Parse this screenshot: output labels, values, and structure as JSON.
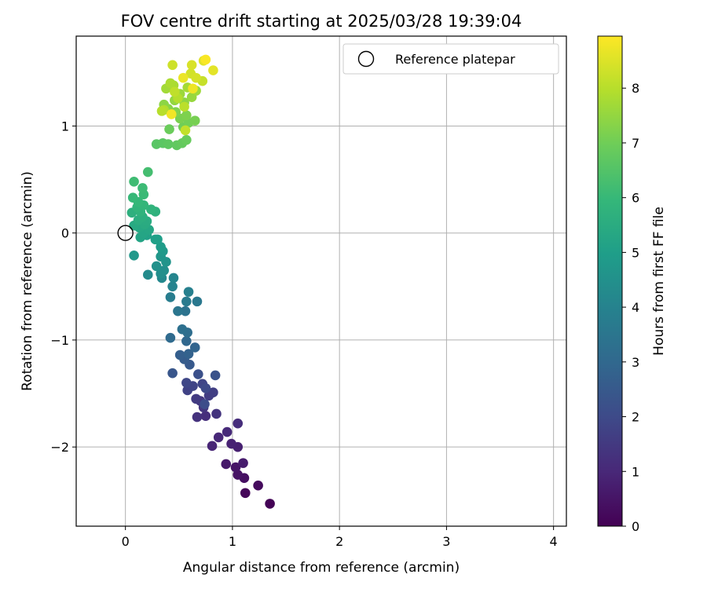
{
  "chart_data": {
    "type": "scatter",
    "title": "FOV centre drift starting at 2025/03/28 19:39:04",
    "xlabel": "Angular distance from reference (arcmin)",
    "ylabel": "Rotation from reference (arcmin)",
    "xlim": [
      -0.46,
      4.12
    ],
    "ylim": [
      -2.74,
      1.84
    ],
    "xticks": [
      0,
      1,
      2,
      3,
      4
    ],
    "xtick_labels": [
      "0",
      "1",
      "2",
      "3",
      "4"
    ],
    "yticks": [
      -2,
      -1,
      0,
      1
    ],
    "ytick_labels": [
      "−2",
      "−1",
      "0",
      "1"
    ],
    "grid": true,
    "legend": {
      "position": "top-right",
      "entries": [
        {
          "label": "Reference platepar",
          "marker": "open-circle"
        }
      ]
    },
    "reference_point": {
      "x": 0,
      "y": 0
    },
    "colorbar": {
      "label": "Hours from first FF file",
      "colormap": "viridis",
      "range": [
        0,
        8.95
      ],
      "ticks": [
        0,
        1,
        2,
        3,
        4,
        5,
        6,
        7,
        8
      ],
      "tick_labels": [
        "0",
        "1",
        "2",
        "3",
        "4",
        "5",
        "6",
        "7",
        "8"
      ]
    },
    "points": [
      {
        "x": 1.35,
        "y": -2.53,
        "t": 0.05
      },
      {
        "x": 1.12,
        "y": -2.43,
        "t": 0.15
      },
      {
        "x": 1.24,
        "y": -2.36,
        "t": 0.25
      },
      {
        "x": 1.11,
        "y": -2.29,
        "t": 0.35
      },
      {
        "x": 1.05,
        "y": -2.26,
        "t": 0.45
      },
      {
        "x": 1.03,
        "y": -2.19,
        "t": 0.5
      },
      {
        "x": 0.94,
        "y": -2.16,
        "t": 0.6
      },
      {
        "x": 1.1,
        "y": -2.15,
        "t": 0.7
      },
      {
        "x": 1.05,
        "y": -2.0,
        "t": 0.8
      },
      {
        "x": 0.99,
        "y": -1.97,
        "t": 0.85
      },
      {
        "x": 0.81,
        "y": -1.99,
        "t": 0.95
      },
      {
        "x": 0.87,
        "y": -1.91,
        "t": 1.0
      },
      {
        "x": 0.95,
        "y": -1.86,
        "t": 1.05
      },
      {
        "x": 1.05,
        "y": -1.78,
        "t": 1.15
      },
      {
        "x": 0.75,
        "y": -1.71,
        "t": 1.2
      },
      {
        "x": 0.67,
        "y": -1.72,
        "t": 1.3
      },
      {
        "x": 0.85,
        "y": -1.69,
        "t": 1.35
      },
      {
        "x": 0.73,
        "y": -1.63,
        "t": 1.4
      },
      {
        "x": 0.7,
        "y": -1.57,
        "t": 1.5
      },
      {
        "x": 0.66,
        "y": -1.55,
        "t": 1.55
      },
      {
        "x": 0.78,
        "y": -1.52,
        "t": 1.6
      },
      {
        "x": 0.82,
        "y": -1.49,
        "t": 1.65
      },
      {
        "x": 0.58,
        "y": -1.47,
        "t": 1.75
      },
      {
        "x": 0.63,
        "y": -1.43,
        "t": 1.8
      },
      {
        "x": 0.72,
        "y": -1.41,
        "t": 1.85
      },
      {
        "x": 0.57,
        "y": -1.4,
        "t": 1.9
      },
      {
        "x": 0.75,
        "y": -1.45,
        "t": 2.0
      },
      {
        "x": 0.74,
        "y": -1.6,
        "t": 2.1
      },
      {
        "x": 0.68,
        "y": -1.32,
        "t": 2.2
      },
      {
        "x": 0.84,
        "y": -1.33,
        "t": 2.3
      },
      {
        "x": 0.44,
        "y": -1.31,
        "t": 2.4
      },
      {
        "x": 0.6,
        "y": -1.23,
        "t": 2.5
      },
      {
        "x": 0.55,
        "y": -1.18,
        "t": 2.6
      },
      {
        "x": 0.51,
        "y": -1.14,
        "t": 2.7
      },
      {
        "x": 0.59,
        "y": -1.13,
        "t": 2.8
      },
      {
        "x": 0.65,
        "y": -1.07,
        "t": 2.9
      },
      {
        "x": 0.57,
        "y": -1.01,
        "t": 3.0
      },
      {
        "x": 0.42,
        "y": -0.98,
        "t": 3.1
      },
      {
        "x": 0.58,
        "y": -0.93,
        "t": 3.2
      },
      {
        "x": 0.53,
        "y": -0.9,
        "t": 3.3
      },
      {
        "x": 0.56,
        "y": -0.73,
        "t": 3.4
      },
      {
        "x": 0.49,
        "y": -0.73,
        "t": 3.5
      },
      {
        "x": 0.67,
        "y": -0.64,
        "t": 3.6
      },
      {
        "x": 0.57,
        "y": -0.64,
        "t": 3.7
      },
      {
        "x": 0.42,
        "y": -0.6,
        "t": 3.8
      },
      {
        "x": 0.59,
        "y": -0.55,
        "t": 3.9
      },
      {
        "x": 0.44,
        "y": -0.5,
        "t": 4.0
      },
      {
        "x": 0.45,
        "y": -0.42,
        "t": 4.1
      },
      {
        "x": 0.34,
        "y": -0.42,
        "t": 4.2
      },
      {
        "x": 0.21,
        "y": -0.39,
        "t": 4.3
      },
      {
        "x": 0.33,
        "y": -0.38,
        "t": 4.4
      },
      {
        "x": 0.36,
        "y": -0.35,
        "t": 4.45
      },
      {
        "x": 0.29,
        "y": -0.31,
        "t": 4.5
      },
      {
        "x": 0.38,
        "y": -0.27,
        "t": 4.6
      },
      {
        "x": 0.33,
        "y": -0.22,
        "t": 4.7
      },
      {
        "x": 0.08,
        "y": -0.21,
        "t": 4.75
      },
      {
        "x": 0.35,
        "y": -0.17,
        "t": 4.8
      },
      {
        "x": 0.33,
        "y": -0.13,
        "t": 4.9
      },
      {
        "x": 0.3,
        "y": -0.06,
        "t": 5.0
      },
      {
        "x": 0.28,
        "y": -0.06,
        "t": 5.05
      },
      {
        "x": 0.2,
        "y": -0.02,
        "t": 5.1
      },
      {
        "x": 0.14,
        "y": -0.04,
        "t": 5.2
      },
      {
        "x": 0.17,
        "y": 0.0,
        "t": 5.25
      },
      {
        "x": 0.22,
        "y": 0.03,
        "t": 5.3
      },
      {
        "x": 0.13,
        "y": 0.05,
        "t": 5.35
      },
      {
        "x": 0.08,
        "y": 0.07,
        "t": 5.4
      },
      {
        "x": 0.18,
        "y": 0.08,
        "t": 5.45
      },
      {
        "x": 0.2,
        "y": 0.11,
        "t": 5.5
      },
      {
        "x": 0.12,
        "y": 0.12,
        "t": 5.55
      },
      {
        "x": 0.16,
        "y": 0.15,
        "t": 5.6
      },
      {
        "x": 0.06,
        "y": 0.19,
        "t": 5.65
      },
      {
        "x": 0.28,
        "y": 0.2,
        "t": 5.7
      },
      {
        "x": 0.14,
        "y": 0.2,
        "t": 5.75
      },
      {
        "x": 0.24,
        "y": 0.22,
        "t": 5.8
      },
      {
        "x": 0.11,
        "y": 0.24,
        "t": 5.85
      },
      {
        "x": 0.17,
        "y": 0.26,
        "t": 5.9
      },
      {
        "x": 0.12,
        "y": 0.29,
        "t": 5.95
      },
      {
        "x": 0.07,
        "y": 0.33,
        "t": 6.0
      },
      {
        "x": 0.17,
        "y": 0.36,
        "t": 6.05
      },
      {
        "x": 0.16,
        "y": 0.42,
        "t": 6.1
      },
      {
        "x": 0.08,
        "y": 0.48,
        "t": 6.15
      },
      {
        "x": 0.21,
        "y": 0.57,
        "t": 6.25
      },
      {
        "x": 0.29,
        "y": 0.83,
        "t": 6.6
      },
      {
        "x": 0.35,
        "y": 0.84,
        "t": 6.65
      },
      {
        "x": 0.4,
        "y": 0.83,
        "t": 6.7
      },
      {
        "x": 0.48,
        "y": 0.82,
        "t": 6.75
      },
      {
        "x": 0.53,
        "y": 0.84,
        "t": 6.8
      },
      {
        "x": 0.57,
        "y": 0.87,
        "t": 6.85
      },
      {
        "x": 0.41,
        "y": 0.97,
        "t": 6.9
      },
      {
        "x": 0.54,
        "y": 0.99,
        "t": 7.0
      },
      {
        "x": 0.59,
        "y": 1.03,
        "t": 7.05
      },
      {
        "x": 0.65,
        "y": 1.05,
        "t": 7.1
      },
      {
        "x": 0.51,
        "y": 1.07,
        "t": 7.15
      },
      {
        "x": 0.57,
        "y": 1.1,
        "t": 7.2
      },
      {
        "x": 0.47,
        "y": 1.13,
        "t": 7.25
      },
      {
        "x": 0.4,
        "y": 1.16,
        "t": 7.35
      },
      {
        "x": 0.36,
        "y": 1.2,
        "t": 7.4
      },
      {
        "x": 0.55,
        "y": 1.22,
        "t": 7.45
      },
      {
        "x": 0.46,
        "y": 1.24,
        "t": 7.5
      },
      {
        "x": 0.62,
        "y": 1.27,
        "t": 7.55
      },
      {
        "x": 0.51,
        "y": 1.3,
        "t": 7.6
      },
      {
        "x": 0.66,
        "y": 1.33,
        "t": 7.65
      },
      {
        "x": 0.38,
        "y": 1.35,
        "t": 7.7
      },
      {
        "x": 0.58,
        "y": 1.36,
        "t": 7.75
      },
      {
        "x": 0.45,
        "y": 1.38,
        "t": 7.8
      },
      {
        "x": 0.42,
        "y": 1.4,
        "t": 7.85
      },
      {
        "x": 0.36,
        "y": 1.15,
        "t": 7.9
      },
      {
        "x": 0.49,
        "y": 1.26,
        "t": 7.95
      },
      {
        "x": 0.34,
        "y": 1.14,
        "t": 8.0
      },
      {
        "x": 0.55,
        "y": 1.18,
        "t": 8.05
      },
      {
        "x": 0.46,
        "y": 1.32,
        "t": 8.1
      },
      {
        "x": 0.56,
        "y": 0.96,
        "t": 8.15
      },
      {
        "x": 0.72,
        "y": 1.42,
        "t": 8.2
      },
      {
        "x": 0.44,
        "y": 1.57,
        "t": 8.3
      },
      {
        "x": 0.61,
        "y": 1.49,
        "t": 8.35
      },
      {
        "x": 0.66,
        "y": 1.45,
        "t": 8.4
      },
      {
        "x": 0.62,
        "y": 1.57,
        "t": 8.45
      },
      {
        "x": 0.73,
        "y": 1.61,
        "t": 8.55
      },
      {
        "x": 0.82,
        "y": 1.52,
        "t": 8.6
      },
      {
        "x": 0.54,
        "y": 1.45,
        "t": 8.7
      },
      {
        "x": 0.63,
        "y": 1.35,
        "t": 8.75
      },
      {
        "x": 0.43,
        "y": 1.11,
        "t": 8.8
      },
      {
        "x": 0.75,
        "y": 1.62,
        "t": 8.9
      }
    ]
  }
}
